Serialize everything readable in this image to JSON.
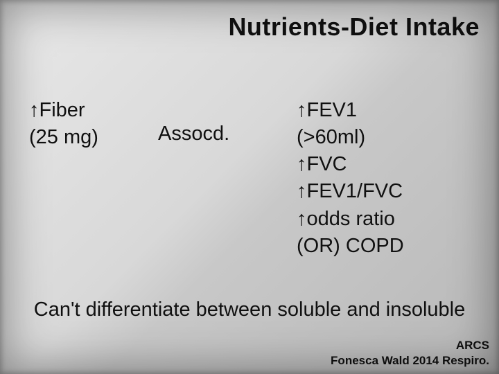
{
  "background_gradient": [
    "#e8e8e8",
    "#d8d8d8",
    "#c8c8c8",
    "#b8b8b8"
  ],
  "text_color": "#101010",
  "title": "Nutrients-Diet Intake",
  "title_fontsize": 36,
  "body_fontsize": 29,
  "columns": {
    "left": {
      "lines": [
        "↑Fiber",
        "(25 mg)"
      ]
    },
    "mid": {
      "lines": [
        "Assocd."
      ]
    },
    "right": {
      "lines": [
        "↑FEV1",
        "(>60ml)",
        "↑FVC",
        "↑FEV1/FVC",
        "↑odds ratio",
        "(OR) COPD"
      ]
    }
  },
  "footnote": "Can't differentiate between soluble and insoluble",
  "credits": {
    "line1": "ARCS",
    "line2": "Fonesca Wald 2014 Respiro."
  },
  "credits_fontsize": 17
}
